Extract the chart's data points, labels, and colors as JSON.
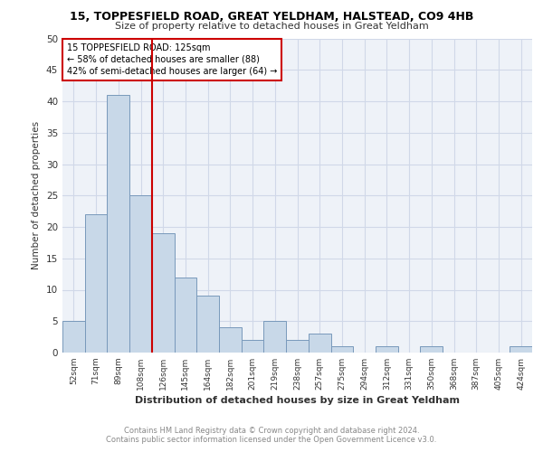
{
  "title1": "15, TOPPESFIELD ROAD, GREAT YELDHAM, HALSTEAD, CO9 4HB",
  "title2": "Size of property relative to detached houses in Great Yeldham",
  "xlabel": "Distribution of detached houses by size in Great Yeldham",
  "ylabel": "Number of detached properties",
  "footnote1": "Contains HM Land Registry data © Crown copyright and database right 2024.",
  "footnote2": "Contains public sector information licensed under the Open Government Licence v3.0.",
  "bin_labels": [
    "52sqm",
    "71sqm",
    "89sqm",
    "108sqm",
    "126sqm",
    "145sqm",
    "164sqm",
    "182sqm",
    "201sqm",
    "219sqm",
    "238sqm",
    "257sqm",
    "275sqm",
    "294sqm",
    "312sqm",
    "331sqm",
    "350sqm",
    "368sqm",
    "387sqm",
    "405sqm",
    "424sqm"
  ],
  "bar_heights": [
    5,
    22,
    41,
    25,
    19,
    12,
    9,
    4,
    2,
    5,
    2,
    3,
    1,
    0,
    1,
    0,
    1,
    0,
    0,
    0,
    1
  ],
  "bar_color": "#c8d8e8",
  "bar_edge_color": "#7899bb",
  "vline_x": 4,
  "vline_color": "#cc0000",
  "annotation_text": "15 TOPPESFIELD ROAD: 125sqm\n← 58% of detached houses are smaller (88)\n42% of semi-detached houses are larger (64) →",
  "annotation_box_color": "#cc0000",
  "ylim": [
    0,
    50
  ],
  "yticks": [
    0,
    5,
    10,
    15,
    20,
    25,
    30,
    35,
    40,
    45,
    50
  ],
  "grid_color": "#d0d8e8",
  "bg_color": "#eef2f8"
}
